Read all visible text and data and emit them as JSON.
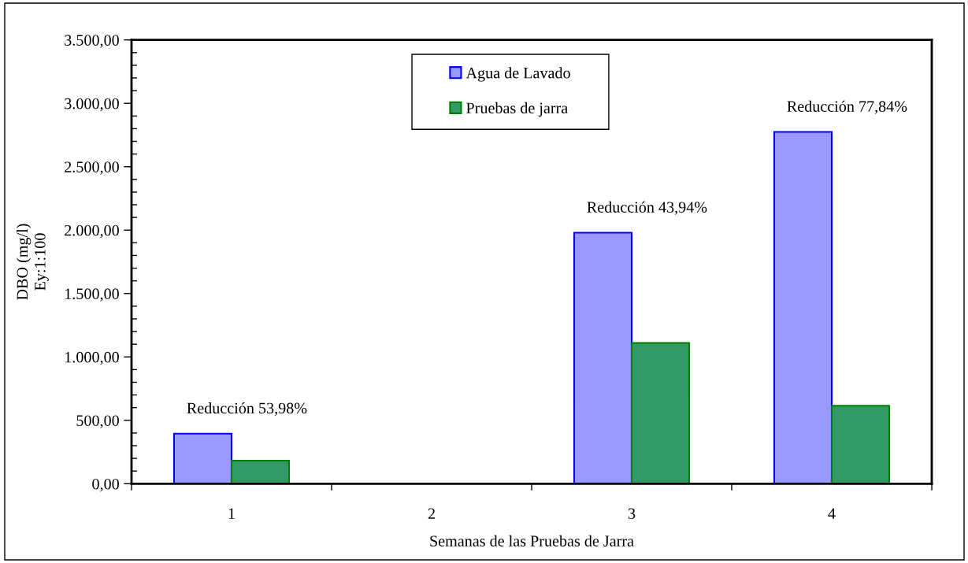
{
  "chart_data": {
    "type": "bar",
    "xlabel": "Semanas de las Pruebas de Jarra",
    "ylabel": "DBO (mg/l)\nEy:1:100",
    "categories": [
      "1",
      "2",
      "3",
      "4"
    ],
    "series": [
      {
        "name": "Agua de Lavado",
        "color": "#9999ff",
        "values": [
          395,
          null,
          1980,
          2775
        ]
      },
      {
        "name": "Pruebas de jarra",
        "color": "#339966",
        "values": [
          182,
          null,
          1110,
          615
        ]
      }
    ],
    "ylim": [
      0,
      3500
    ],
    "yticks": [
      {
        "value": 0,
        "label": "0,00"
      },
      {
        "value": 100,
        "label": null
      },
      {
        "value": 200,
        "label": null
      },
      {
        "value": 300,
        "label": null
      },
      {
        "value": 400,
        "label": null
      },
      {
        "value": 500,
        "label": "500,00"
      },
      {
        "value": 600,
        "label": null
      },
      {
        "value": 700,
        "label": null
      },
      {
        "value": 800,
        "label": null
      },
      {
        "value": 900,
        "label": null
      },
      {
        "value": 1000,
        "label": "1.000,00"
      },
      {
        "value": 1100,
        "label": null
      },
      {
        "value": 1200,
        "label": null
      },
      {
        "value": 1300,
        "label": null
      },
      {
        "value": 1400,
        "label": null
      },
      {
        "value": 1500,
        "label": "1.500,00"
      },
      {
        "value": 1600,
        "label": null
      },
      {
        "value": 1700,
        "label": null
      },
      {
        "value": 1800,
        "label": null
      },
      {
        "value": 1900,
        "label": null
      },
      {
        "value": 2000,
        "label": "2.000,00"
      },
      {
        "value": 2100,
        "label": null
      },
      {
        "value": 2200,
        "label": null
      },
      {
        "value": 2300,
        "label": null
      },
      {
        "value": 2400,
        "label": null
      },
      {
        "value": 2500,
        "label": "2.500,00"
      },
      {
        "value": 2600,
        "label": null
      },
      {
        "value": 2700,
        "label": null
      },
      {
        "value": 2800,
        "label": null
      },
      {
        "value": 2900,
        "label": null
      },
      {
        "value": 3000,
        "label": "3.000,00"
      },
      {
        "value": 3100,
        "label": null
      },
      {
        "value": 3200,
        "label": null
      },
      {
        "value": 3300,
        "label": null
      },
      {
        "value": 3400,
        "label": null
      },
      {
        "value": 3500,
        "label": "3.500,00"
      }
    ],
    "legend": "top",
    "annotations": [
      {
        "text": "Reducción 53,98%",
        "x": "1",
        "y": 395
      },
      {
        "text": "Reducción 43,94%",
        "x": "3",
        "y": 1980
      },
      {
        "text": "Reducción 77,84%",
        "x": "4",
        "y": 2775
      }
    ]
  }
}
